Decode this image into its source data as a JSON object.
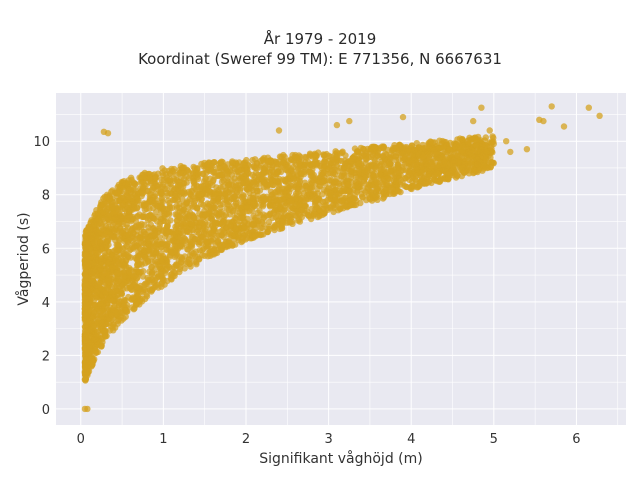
{
  "chart_data": {
    "type": "scatter",
    "title": "År 1979 - 2019",
    "subtitle": "Koordinat (Sweref 99 TM): E 771356, N 6667631",
    "xlabel": "Signifikant våghöjd (m)",
    "ylabel": "Vågperiod (s)",
    "xlim": [
      -0.3,
      6.6
    ],
    "ylim": [
      -0.6,
      11.8
    ],
    "xticks": [
      "0",
      "1",
      "2",
      "3",
      "4",
      "5",
      "6"
    ],
    "yticks": [
      "0",
      "2",
      "4",
      "6",
      "8",
      "10"
    ],
    "grid": true,
    "legend": "none",
    "colors": {
      "marker": "#d4a21f",
      "plot_background": "#e9e9f1",
      "grid": "#ffffff"
    },
    "density_band": {
      "x": [
        0.05,
        0.1,
        0.2,
        0.3,
        0.5,
        0.75,
        1.0,
        1.5,
        2.0,
        2.5,
        3.0,
        3.5,
        4.0,
        4.5,
        5.0
      ],
      "y_lower": [
        1.0,
        1.4,
        2.0,
        2.6,
        3.3,
        4.0,
        4.6,
        5.6,
        6.3,
        6.8,
        7.3,
        7.7,
        8.2,
        8.6,
        9.0
      ],
      "y_upper": [
        6.5,
        7.0,
        7.5,
        8.0,
        8.5,
        8.8,
        9.0,
        9.2,
        9.3,
        9.5,
        9.6,
        9.8,
        9.9,
        10.1,
        10.2
      ]
    },
    "highlighted_points": [
      {
        "x": 0.05,
        "y": 0.0
      },
      {
        "x": 0.08,
        "y": 0.0
      },
      {
        "x": 0.28,
        "y": 10.35
      },
      {
        "x": 0.33,
        "y": 10.3
      },
      {
        "x": 2.4,
        "y": 10.4
      },
      {
        "x": 3.1,
        "y": 10.6
      },
      {
        "x": 3.25,
        "y": 10.75
      },
      {
        "x": 3.9,
        "y": 10.9
      },
      {
        "x": 4.85,
        "y": 11.25
      },
      {
        "x": 4.75,
        "y": 10.75
      },
      {
        "x": 5.55,
        "y": 10.8
      },
      {
        "x": 5.7,
        "y": 11.3
      },
      {
        "x": 5.6,
        "y": 10.75
      },
      {
        "x": 5.85,
        "y": 10.55
      },
      {
        "x": 6.15,
        "y": 11.25
      },
      {
        "x": 6.28,
        "y": 10.95
      },
      {
        "x": 5.15,
        "y": 10.0
      },
      {
        "x": 5.4,
        "y": 9.7
      },
      {
        "x": 5.2,
        "y": 9.6
      },
      {
        "x": 4.95,
        "y": 10.4
      },
      {
        "x": 5.0,
        "y": 9.9
      },
      {
        "x": 4.7,
        "y": 9.6
      }
    ]
  }
}
